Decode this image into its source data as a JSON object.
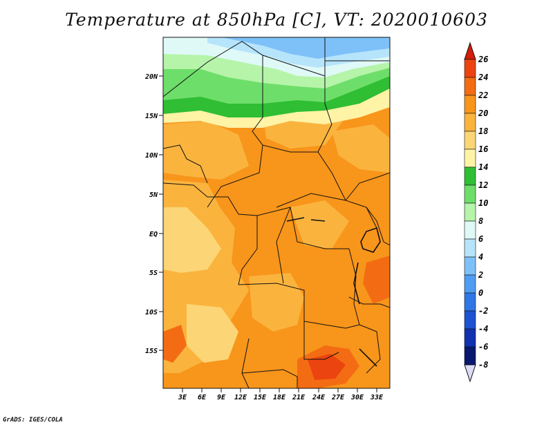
{
  "title": "Temperature at 850hPa [C], VT: 2020010603",
  "credit": "GrADS: IGES/COLA",
  "map": {
    "lon_labels": [
      "3E",
      "6E",
      "9E",
      "12E",
      "15E",
      "18E",
      "21E",
      "24E",
      "27E",
      "30E",
      "33E"
    ],
    "lat_labels": [
      "20N",
      "15N",
      "10N",
      "5N",
      "EQ",
      "5S",
      "10S",
      "15S"
    ],
    "extent": {
      "lon_min": 0,
      "lon_max": 35,
      "lat_min": -20,
      "lat_max": 25
    },
    "field": "Temperature at 850hPa",
    "units": "C"
  },
  "colorbar": {
    "labels": [
      "26",
      "24",
      "22",
      "20",
      "18",
      "16",
      "14",
      "12",
      "10",
      "8",
      "6",
      "4",
      "2",
      "0",
      "-2",
      "-4",
      "-6",
      "-8"
    ],
    "colors": [
      "#d41d0a",
      "#ec4410",
      "#f36c13",
      "#f8951b",
      "#fab43e",
      "#fcd676",
      "#fff3a6",
      "#2fbe34",
      "#6ede6a",
      "#b5f4a9",
      "#dff9f7",
      "#b6e4fb",
      "#7ec1f8",
      "#4f9df2",
      "#2f76e6",
      "#1d52d0",
      "#1032b0",
      "#07186e",
      "#dcdcf8"
    ]
  },
  "regions": [
    {
      "name": "north-cold-band",
      "range": "0 to 6",
      "color": "#7ec1f8"
    },
    {
      "name": "sahel-green-band",
      "range": "8 to 14",
      "color": "#6ede6a"
    },
    {
      "name": "central-warm",
      "range": "18 to 22",
      "color": "#f8951b"
    },
    {
      "name": "southern-hot-spot",
      "range": "24 to 26",
      "color": "#ec4410"
    }
  ]
}
